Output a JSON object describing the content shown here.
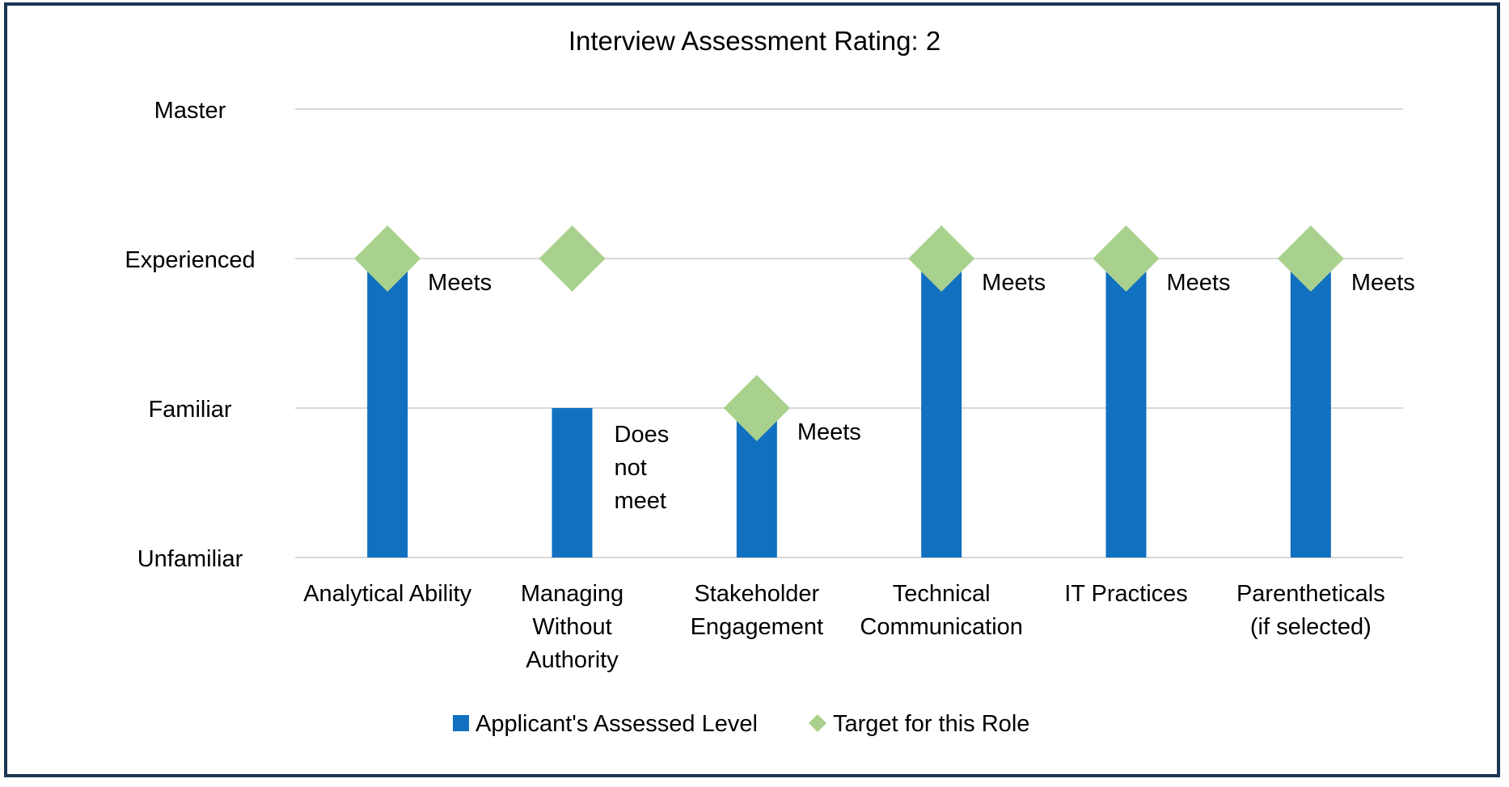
{
  "chart_data": {
    "type": "bar",
    "title": "Interview Assessment Rating: 2",
    "xlabel": "",
    "ylabel": "",
    "y_levels": [
      "Unfamiliar",
      "Familiar",
      "Experienced",
      "Master"
    ],
    "ylim": [
      0,
      3
    ],
    "grid": true,
    "legend_position": "bottom",
    "categories": [
      [
        "Analytical Ability"
      ],
      [
        "Managing",
        "Without",
        "Authority"
      ],
      [
        "Stakeholder",
        "Engagement"
      ],
      [
        "Technical",
        "Communication"
      ],
      [
        "IT Practices"
      ],
      [
        "Parentheticals",
        "(if selected)"
      ]
    ],
    "series": [
      {
        "name": "Applicant's Assessed Level",
        "kind": "bar",
        "color": "#1170bf",
        "values": [
          2,
          1,
          1,
          2,
          2,
          2
        ]
      },
      {
        "name": "Target for this Role",
        "kind": "diamond",
        "color": "#a9d18e",
        "values": [
          2,
          2,
          1,
          2,
          2,
          2
        ]
      }
    ],
    "annotations": [
      [
        "Meets"
      ],
      [
        "Does",
        "not",
        "meet"
      ],
      [
        "Meets"
      ],
      [
        "Meets"
      ],
      [
        "Meets"
      ],
      [
        "Meets"
      ]
    ]
  }
}
